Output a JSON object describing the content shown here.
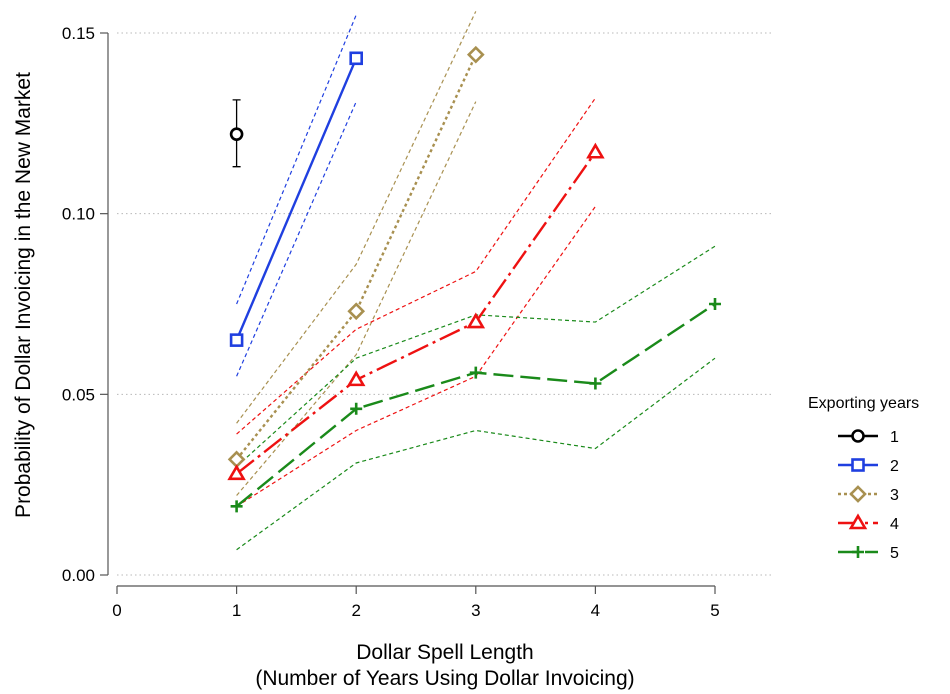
{
  "chart_data": {
    "type": "line",
    "ylabel": "Probability of Dollar Invoicing in the New Market",
    "xlabel_line1": "Dollar Spell Length",
    "xlabel_line2": "(Number of Years Using Dollar Invoicing)",
    "xlim": [
      0,
      5
    ],
    "ylim": [
      0,
      0.15
    ],
    "xticks": [
      0,
      1,
      2,
      3,
      4,
      5
    ],
    "yticks": [
      {
        "value": 0.0,
        "label": "0.00"
      },
      {
        "value": 0.05,
        "label": "0.05"
      },
      {
        "value": 0.1,
        "label": "0.10"
      },
      {
        "value": 0.15,
        "label": "0.15"
      }
    ],
    "grid": "horizontal dotted",
    "legend": {
      "title": "Exporting years",
      "position": "right"
    },
    "series": [
      {
        "name": "1",
        "color": "#000000",
        "marker": "circle",
        "dash": "solid",
        "x": [
          1
        ],
        "y": [
          0.122
        ],
        "lower": [
          0.113
        ],
        "upper": [
          0.1315
        ],
        "ci_style": "errorbar"
      },
      {
        "name": "2",
        "color": "#1f3fe0",
        "marker": "square",
        "dash": "solid",
        "x": [
          1,
          2
        ],
        "y": [
          0.065,
          0.143
        ],
        "lower": [
          0.055,
          0.131
        ],
        "upper": [
          0.075,
          0.155
        ],
        "ci_style": "dashed"
      },
      {
        "name": "3",
        "color": "#a89050",
        "marker": "diamond",
        "dash": "dotted",
        "x": [
          1,
          2,
          3
        ],
        "y": [
          0.032,
          0.073,
          0.144
        ],
        "lower": [
          0.022,
          0.061,
          0.131
        ],
        "upper": [
          0.042,
          0.086,
          0.156
        ],
        "ci_style": "dashed"
      },
      {
        "name": "4",
        "color": "#ee1111",
        "marker": "triangle",
        "dash": "dashdot",
        "x": [
          1,
          2,
          3,
          4
        ],
        "y": [
          0.028,
          0.054,
          0.07,
          0.117
        ],
        "lower": [
          0.019,
          0.04,
          0.055,
          0.102
        ],
        "upper": [
          0.039,
          0.068,
          0.084,
          0.132
        ],
        "ci_style": "dashed"
      },
      {
        "name": "5",
        "color": "#1a8a1a",
        "marker": "plus",
        "dash": "longdash",
        "x": [
          1,
          2,
          3,
          4,
          5
        ],
        "y": [
          0.019,
          0.046,
          0.056,
          0.053,
          0.075
        ],
        "lower": [
          0.007,
          0.031,
          0.04,
          0.035,
          0.06
        ],
        "upper": [
          0.03,
          0.06,
          0.072,
          0.07,
          0.091
        ],
        "ci_style": "dashed"
      }
    ]
  }
}
